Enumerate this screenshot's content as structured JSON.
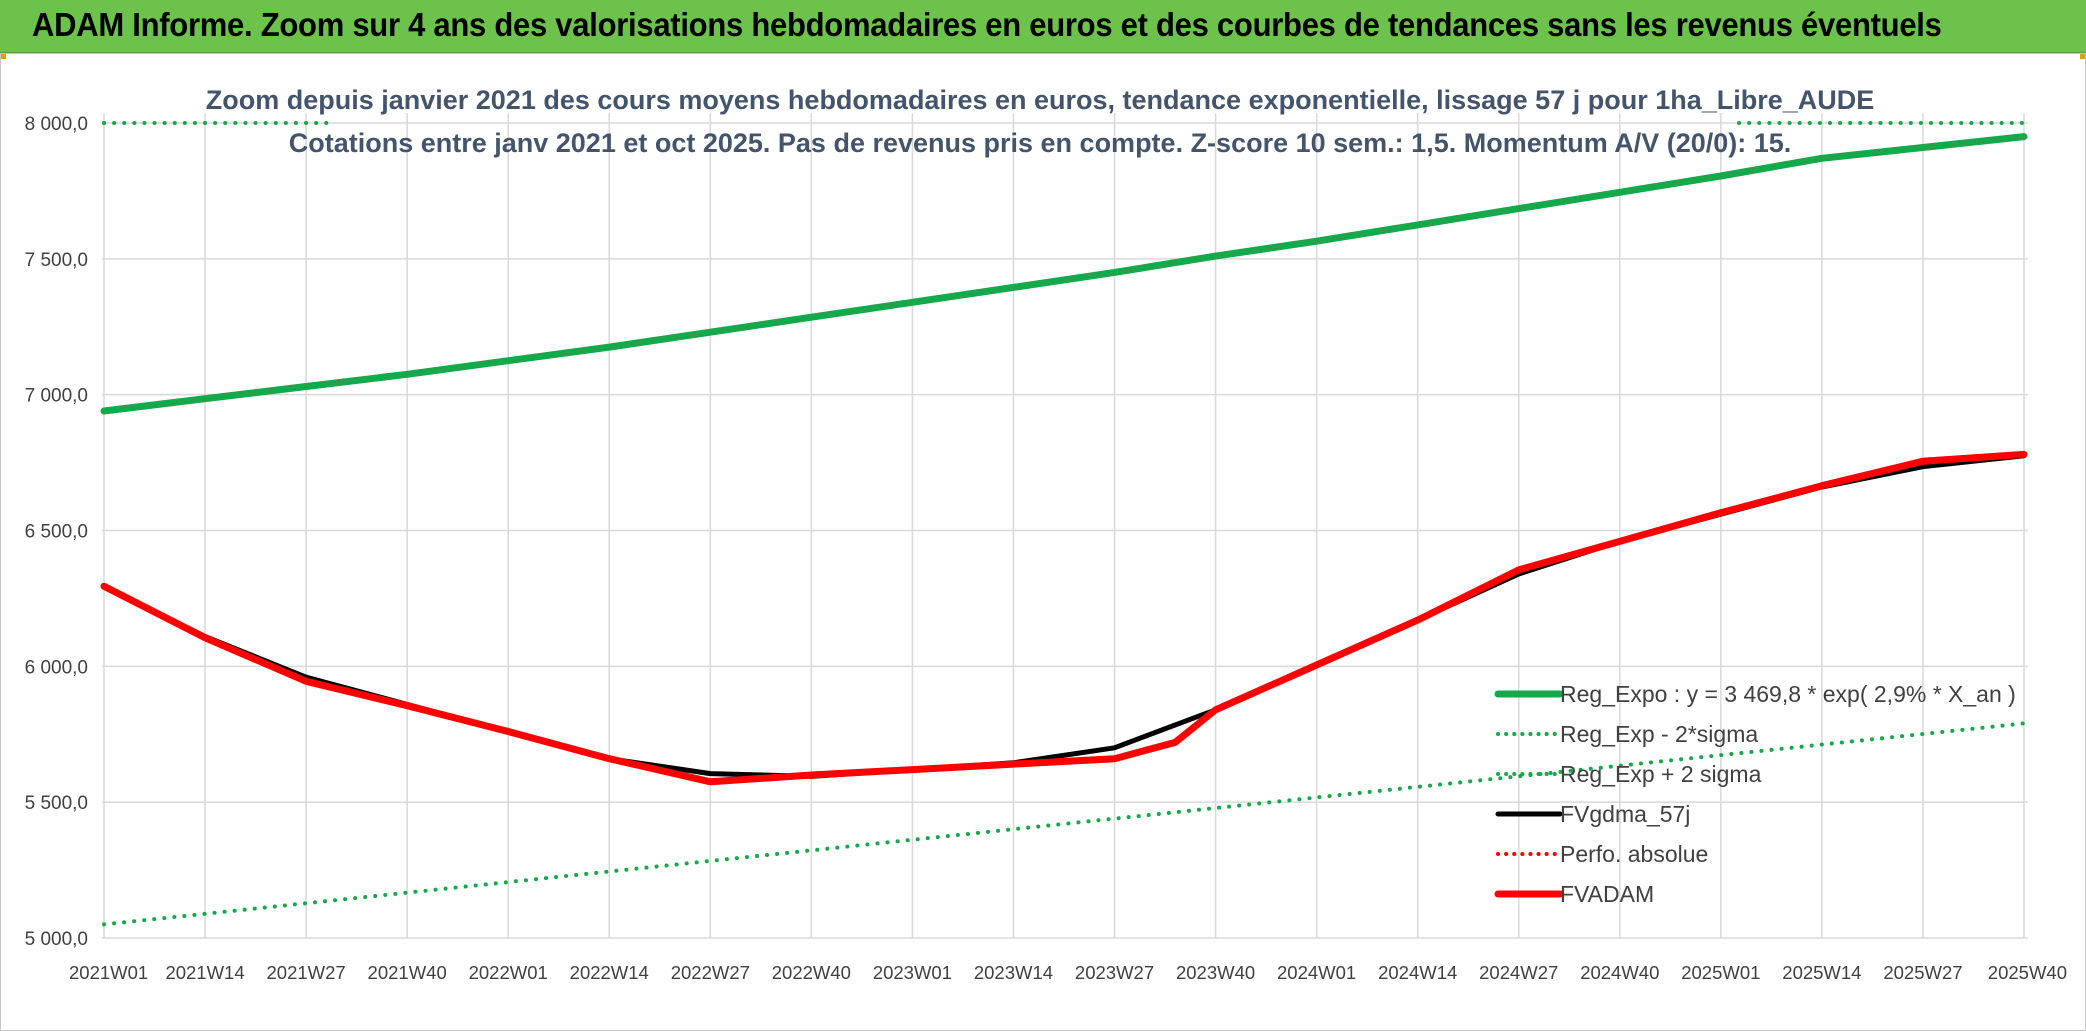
{
  "banner": {
    "title": "ADAM Informe. Zoom sur 4 ans des valorisations hebdomadaires en euros et des courbes de tendances sans les revenus éventuels"
  },
  "colors": {
    "banner_bg": "#6cc24a",
    "trend_green": "#16a84a",
    "series_black": "#000000",
    "series_red": "#ff0000",
    "grid": "#d9d9d9",
    "title_text": "#44546a"
  },
  "chart_data": {
    "type": "line",
    "title": "Zoom depuis janvier 2021 des cours moyens hebdomadaires en euros, tendance exponentielle, lissage 57 j pour 1ha_Libre_AUDE",
    "subtitle": "Cotations entre janv 2021 et oct 2025. Pas de revenus pris en compte. Z-score 10 sem.: 1,5. Momentum A/V (20/0): 15.",
    "xlabel": "",
    "ylabel": "",
    "ylim": [
      5000,
      8000
    ],
    "yticks": [
      5000,
      5500,
      6000,
      6500,
      7000,
      7500,
      8000
    ],
    "ytick_labels": [
      "5 000,0",
      "5 500,0",
      "6 000,0",
      "6 500,0",
      "7 000,0",
      "7 500,0",
      "8 000,0"
    ],
    "categories": [
      "2021W01",
      "2021W14",
      "2021W27",
      "2021W40",
      "2022W01",
      "2022W14",
      "2022W27",
      "2022W40",
      "2023W01",
      "2023W14",
      "2023W27",
      "2023W40",
      "2024W01",
      "2024W14",
      "2024W27",
      "2024W40",
      "2025W01",
      "2025W14",
      "2025W27",
      "2025W40"
    ],
    "grid": true,
    "legend_position": "bottom-right",
    "series": [
      {
        "name": "Reg_Expo : y = 3 469,8 * exp( 2,9% *  X_an )",
        "style": "solid-thick",
        "color": "#16a84a",
        "x": [
          0,
          1,
          2,
          3,
          4,
          5,
          6,
          7,
          8,
          9,
          10,
          11,
          12,
          13,
          14,
          15,
          16,
          17,
          18,
          19
        ],
        "y": [
          6940,
          6985,
          7030,
          7075,
          7125,
          7175,
          7230,
          7285,
          7340,
          7395,
          7450,
          7510,
          7565,
          7625,
          7685,
          7745,
          7805,
          7870,
          7910,
          7950
        ]
      },
      {
        "name": "Reg_Exp - 2*sigma",
        "style": "dotted",
        "color": "#16a84a",
        "x": [
          0,
          19
        ],
        "y": [
          5050,
          5790
        ]
      },
      {
        "name": "Reg_Exp + 2 sigma",
        "style": "dotted",
        "color": "#16a84a",
        "x": [
          0,
          2.25,
          16.18,
          19
        ],
        "y": [
          8000,
          8000,
          8000,
          8000
        ],
        "segments": [
          [
            0,
            2.25
          ],
          [
            16.18,
            19
          ]
        ]
      },
      {
        "name": "FVgdma_57j",
        "style": "solid",
        "color": "#000000",
        "x": [
          0,
          1,
          2,
          3,
          4,
          5,
          6,
          7,
          8,
          9,
          10,
          11,
          12,
          13,
          14,
          15,
          16,
          17,
          18,
          19
        ],
        "y": [
          6295,
          6110,
          5960,
          5860,
          5760,
          5660,
          5605,
          5595,
          5620,
          5645,
          5700,
          5840,
          6005,
          6170,
          6340,
          6460,
          6560,
          6660,
          6735,
          6775
        ]
      },
      {
        "name": "Perfo. absolue",
        "style": "dotted",
        "color": "#ff0000",
        "x": [],
        "y": []
      },
      {
        "name": "FVADAM",
        "style": "solid-thick",
        "color": "#ff0000",
        "x": [
          0,
          1,
          2,
          3,
          4,
          5,
          6,
          7,
          8,
          9,
          10,
          10.6,
          11,
          12,
          13,
          14,
          15,
          16,
          17,
          18,
          19
        ],
        "y": [
          6295,
          6105,
          5945,
          5855,
          5760,
          5660,
          5575,
          5600,
          5620,
          5640,
          5660,
          5720,
          5840,
          6005,
          6170,
          6355,
          6460,
          6565,
          6665,
          6755,
          6780
        ]
      }
    ]
  }
}
